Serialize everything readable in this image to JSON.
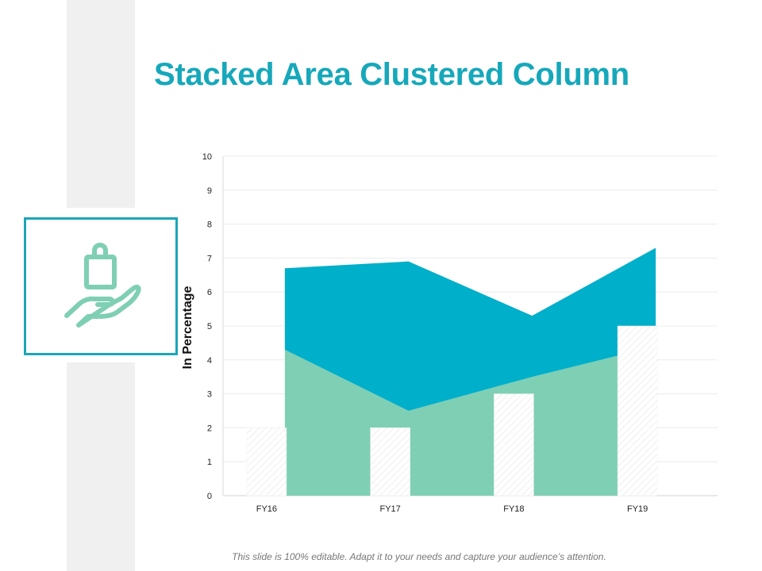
{
  "title": "Stacked Area Clustered Column",
  "icon": "hand-holding-shopping-bag-icon",
  "footer": "This slide is 100% editable. Adapt it to your needs and capture your audience’s attention.",
  "colors": {
    "accent": "#16a8ba",
    "area_bottom": "#7fcfb5",
    "area_top": "#00afc9",
    "column": "#ffffff",
    "icon": "#7fcfb5"
  },
  "chart_data": {
    "type": "bar",
    "title": "",
    "categories": [
      "FY16",
      "FY17",
      "FY18",
      "FY19"
    ],
    "ylabel": "In Percentage",
    "xlabel": "",
    "ylim": [
      0,
      10
    ],
    "yticks": [
      0,
      1,
      2,
      3,
      4,
      5,
      6,
      7,
      8,
      9,
      10
    ],
    "grid": true,
    "series": [
      {
        "type": "column",
        "values": [
          2,
          2,
          3,
          5
        ]
      },
      {
        "type": "area",
        "stacked": true,
        "values": [
          4.3,
          2.5,
          3.5,
          4.4
        ]
      },
      {
        "type": "area",
        "stacked": true,
        "values": [
          2.4,
          4.4,
          1.8,
          2.9
        ]
      }
    ]
  }
}
